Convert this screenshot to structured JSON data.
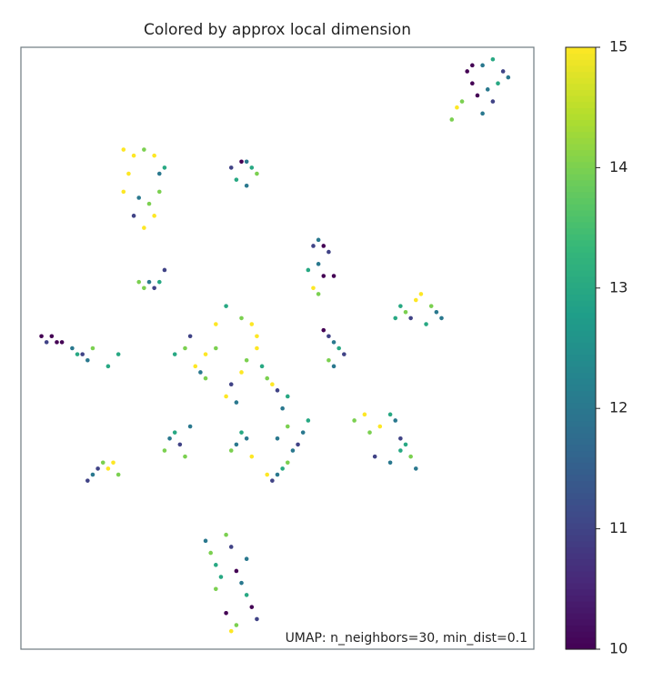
{
  "chart_data": {
    "type": "scatter",
    "title": "Colored by approx local dimension",
    "annotation": "UMAP: n_neighbors=30, min_dist=0.1",
    "xlim": [
      0,
      100
    ],
    "ylim": [
      0,
      100
    ],
    "colormap": "viridis",
    "clim": [
      10,
      15
    ],
    "cticks": [
      10,
      11,
      12,
      13,
      14,
      15
    ],
    "x": [
      87,
      88,
      90,
      92,
      94,
      93,
      91,
      89,
      86,
      85,
      84,
      90,
      92,
      88,
      95,
      20,
      22,
      24,
      26,
      27,
      21,
      20,
      23,
      25,
      26,
      24,
      22,
      27,
      28,
      41,
      43,
      44,
      45,
      46,
      42,
      44,
      57,
      58,
      59,
      60,
      58,
      56,
      59,
      61,
      57,
      58,
      23,
      25,
      26,
      27,
      24,
      28,
      73,
      75,
      77,
      78,
      80,
      82,
      76,
      79,
      81,
      74,
      4,
      5,
      6,
      7,
      8,
      10,
      11,
      12,
      13,
      14,
      17,
      19,
      30,
      32,
      34,
      35,
      36,
      38,
      40,
      41,
      42,
      43,
      44,
      45,
      46,
      47,
      48,
      49,
      50,
      51,
      52,
      38,
      40,
      43,
      46,
      33,
      36,
      59,
      60,
      61,
      62,
      60,
      61,
      63,
      65,
      67,
      68,
      70,
      72,
      73,
      74,
      75,
      76,
      77,
      72,
      74,
      69,
      49,
      50,
      51,
      52,
      53,
      54,
      55,
      56,
      52,
      50,
      48,
      13,
      14,
      15,
      16,
      17,
      18,
      19,
      28,
      29,
      30,
      31,
      32,
      33,
      36,
      37,
      38,
      40,
      41,
      42,
      43,
      44,
      45,
      46,
      40,
      38,
      42,
      44,
      41,
      39,
      41,
      42,
      43,
      44,
      45
    ],
    "values": [
      96,
      97,
      97,
      98,
      96,
      94,
      93,
      92,
      91,
      90,
      88,
      89,
      91,
      94,
      95,
      83,
      82,
      83,
      82,
      79,
      79,
      76,
      75,
      74,
      72,
      70,
      72,
      76,
      80,
      80,
      81,
      81,
      80,
      79,
      78,
      77,
      67,
      68,
      67,
      66,
      64,
      63,
      62,
      62,
      60,
      59,
      61,
      61,
      60,
      61,
      60,
      63,
      55,
      56,
      58,
      59,
      57,
      55,
      55,
      54,
      56,
      57,
      52,
      51,
      52,
      51,
      51,
      50,
      49,
      49,
      48,
      50,
      47,
      49,
      49,
      50,
      47,
      46,
      49,
      50,
      42,
      44,
      41,
      46,
      48,
      54,
      52,
      47,
      45,
      44,
      43,
      40,
      42,
      54,
      57,
      55,
      50,
      52,
      45,
      53,
      52,
      51,
      50,
      48,
      47,
      49,
      38,
      39,
      36,
      37,
      39,
      38,
      35,
      34,
      32,
      30,
      31,
      33,
      32,
      28,
      29,
      30,
      31,
      33,
      34,
      36,
      38,
      37,
      35,
      29,
      28,
      29,
      30,
      31,
      30,
      31,
      29,
      33,
      35,
      36,
      34,
      32,
      37,
      18,
      16,
      14,
      19,
      17,
      13,
      11,
      9,
      7,
      5,
      6,
      10,
      4,
      15,
      3,
      12,
      33,
      34,
      36,
      35,
      32
    ],
    "color_values": [
      10,
      10,
      12,
      13,
      11,
      13,
      12,
      10,
      14,
      15,
      14,
      12,
      11,
      10,
      12,
      15,
      15,
      14,
      15,
      12,
      15,
      15,
      12,
      14,
      15,
      15,
      11,
      14,
      13,
      11,
      10,
      12,
      13,
      14,
      13,
      12,
      11,
      12,
      10,
      11,
      12,
      13,
      10,
      10,
      15,
      14,
      14,
      12,
      11,
      13,
      14,
      11,
      13,
      14,
      15,
      15,
      14,
      12,
      11,
      13,
      12,
      13,
      10,
      11,
      10,
      10,
      10,
      12,
      13,
      11,
      12,
      14,
      13,
      13,
      13,
      14,
      15,
      12,
      15,
      14,
      15,
      11,
      12,
      15,
      14,
      15,
      15,
      13,
      14,
      15,
      11,
      12,
      13,
      15,
      13,
      14,
      15,
      11,
      14,
      10,
      11,
      12,
      13,
      14,
      12,
      11,
      14,
      15,
      14,
      15,
      13,
      12,
      11,
      13,
      14,
      12,
      12,
      13,
      11,
      11,
      12,
      13,
      14,
      12,
      11,
      12,
      13,
      14,
      12,
      15,
      11,
      12,
      11,
      14,
      15,
      15,
      14,
      14,
      12,
      13,
      11,
      14,
      12,
      12,
      14,
      13,
      14,
      11,
      10,
      12,
      13,
      10,
      11,
      10,
      14,
      14,
      12,
      15,
      13,
      14,
      12,
      13,
      12,
      15
    ]
  }
}
